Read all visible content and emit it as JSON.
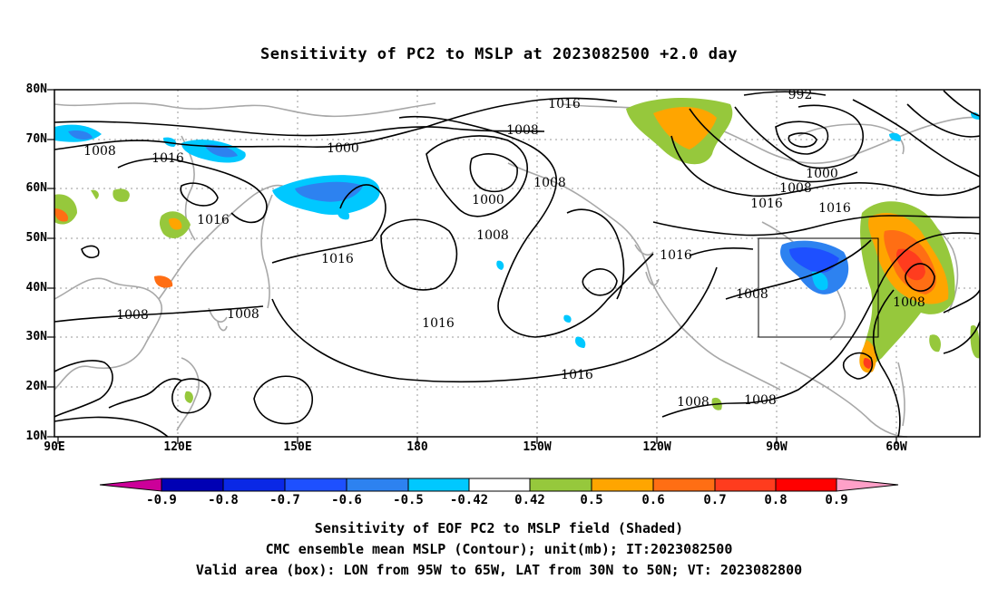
{
  "title": "Sensitivity of PC2 to MSLP at 2023082500 +2.0 day",
  "lat_labels": [
    "80N",
    "70N",
    "60N",
    "50N",
    "40N",
    "30N",
    "20N",
    "10N"
  ],
  "lon_labels": [
    "90E",
    "120E",
    "150E",
    "180",
    "150W",
    "120W",
    "90W",
    "60W"
  ],
  "contour_labels": [
    "1016",
    "1008",
    "1000",
    "1008",
    "1016",
    "1016",
    "1008",
    "1000",
    "1008",
    "1016",
    "992",
    "1000",
    "1008",
    "1016",
    "1016",
    "1016",
    "1008",
    "1008",
    "1016",
    "1016",
    "1008",
    "1008"
  ],
  "colorbar": {
    "labels": [
      "-0.9",
      "-0.8",
      "-0.7",
      "-0.6",
      "-0.5",
      "-0.42",
      "0.42",
      "0.5",
      "0.6",
      "0.7",
      "0.8",
      "0.9"
    ],
    "colors": [
      "#cc0099",
      "#0000b4",
      "#0a28e6",
      "#1e50ff",
      "#2d82f0",
      "#00c8ff",
      "#ffffff",
      "#96c83c",
      "#ffa500",
      "#ff6e14",
      "#ff3c1e",
      "#ff0000",
      "#ffa0c8"
    ]
  },
  "captions": [
    "Sensitivity of EOF PC2 to MSLP field (Shaded)",
    "CMC ensemble mean MSLP (Contour); unit(mb); IT:2023082500",
    "Valid area (box): LON from 95W to 65W, LAT from 30N to 50N; VT: 2023082800"
  ]
}
